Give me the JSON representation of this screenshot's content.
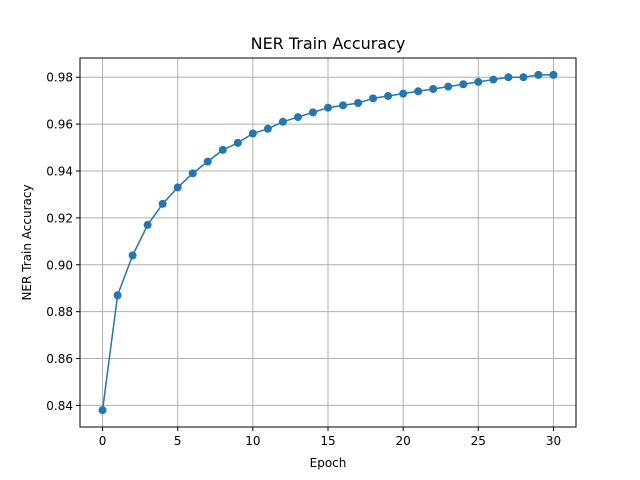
{
  "chart_data": {
    "type": "line",
    "title": "NER Train Accuracy",
    "xlabel": "Epoch",
    "ylabel": "NER Train Accuracy",
    "xlim": [
      -1.5,
      31.5
    ],
    "ylim": [
      0.8308,
      0.9882
    ],
    "xticks": [
      0,
      5,
      10,
      15,
      20,
      25,
      30
    ],
    "xtick_labels": [
      "0",
      "5",
      "10",
      "15",
      "20",
      "25",
      "30"
    ],
    "yticks": [
      0.84,
      0.86,
      0.88,
      0.9,
      0.92,
      0.94,
      0.96,
      0.98
    ],
    "ytick_labels": [
      "0.84",
      "0.86",
      "0.88",
      "0.90",
      "0.92",
      "0.94",
      "0.96",
      "0.98"
    ],
    "grid": true,
    "legend": "none",
    "marker": "circle",
    "color": "#1f77b4",
    "series": [
      {
        "x": [
          0,
          1,
          2,
          3,
          4,
          5,
          6,
          7,
          8,
          9,
          10,
          11,
          12,
          13,
          14,
          15,
          16,
          17,
          18,
          19,
          20,
          21,
          22,
          23,
          24,
          25,
          26,
          27,
          28,
          29,
          30
        ],
        "values": [
          0.838,
          0.887,
          0.904,
          0.917,
          0.926,
          0.933,
          0.939,
          0.944,
          0.949,
          0.952,
          0.956,
          0.958,
          0.961,
          0.963,
          0.965,
          0.967,
          0.968,
          0.969,
          0.971,
          0.972,
          0.973,
          0.974,
          0.975,
          0.976,
          0.977,
          0.978,
          0.979,
          0.98,
          0.98,
          0.981,
          0.981
        ]
      }
    ]
  }
}
